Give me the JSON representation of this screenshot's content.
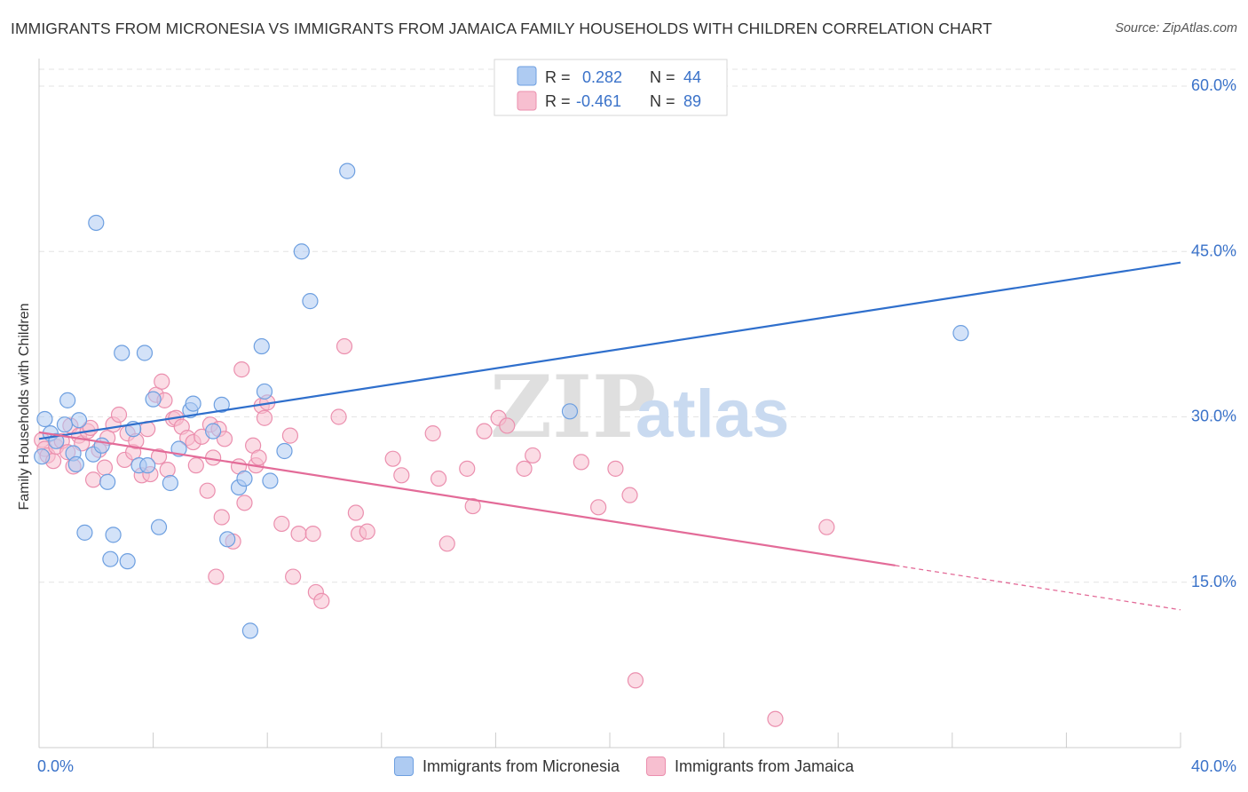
{
  "title": "IMMIGRANTS FROM MICRONESIA VS IMMIGRANTS FROM JAMAICA FAMILY HOUSEHOLDS WITH CHILDREN CORRELATION CHART",
  "source": "Source: ZipAtlas.com",
  "watermark": {
    "zip": "ZIP",
    "atlas": "atlas"
  },
  "colors": {
    "micronesia_fill": "#aecbf2",
    "micronesia_stroke": "#6d9fe0",
    "micronesia_line": "#2f6fcc",
    "jamaica_fill": "#f7bfd0",
    "jamaica_stroke": "#eb8fae",
    "jamaica_line": "#e36b98",
    "axis_value": "#3a72c9",
    "grid": "#e3e3e3"
  },
  "legend_top": [
    {
      "r_label": "R = ",
      "r_value": "0.282",
      "n_label": "N = ",
      "n_value": "44"
    },
    {
      "r_label": "R = ",
      "r_value": "-0.461",
      "n_label": "N = ",
      "n_value": "89"
    }
  ],
  "chart_data": {
    "type": "scatter",
    "xlabel": "",
    "ylabel": "Family Households with Children",
    "xlim": [
      0,
      40
    ],
    "ylim": [
      0,
      60
    ],
    "x_tick_labels": [
      "0.0%",
      "40.0%"
    ],
    "y_ticks": [
      {
        "value": 15,
        "label": "15.0%"
      },
      {
        "value": 30,
        "label": "30.0%"
      },
      {
        "value": 45,
        "label": "45.0%"
      },
      {
        "value": 60,
        "label": "60.0%"
      }
    ],
    "grid": true,
    "legend_position": "top-center and bottom",
    "series": [
      {
        "name": "Immigrants from Micronesia",
        "color": "#6d9fe0",
        "trend": {
          "x0": 0,
          "y0": 28.0,
          "x1": 40,
          "y1": 44.0,
          "solid_until": 40
        },
        "points": [
          [
            0.1,
            26.4
          ],
          [
            0.2,
            29.8
          ],
          [
            0.4,
            28.5
          ],
          [
            0.6,
            27.8
          ],
          [
            0.9,
            29.3
          ],
          [
            1.0,
            31.5
          ],
          [
            1.2,
            26.7
          ],
          [
            1.3,
            25.7
          ],
          [
            1.4,
            29.7
          ],
          [
            1.6,
            19.5
          ],
          [
            1.9,
            26.6
          ],
          [
            2.0,
            47.6
          ],
          [
            2.2,
            27.4
          ],
          [
            2.4,
            24.1
          ],
          [
            2.6,
            19.3
          ],
          [
            2.5,
            17.1
          ],
          [
            2.9,
            35.8
          ],
          [
            3.1,
            16.9
          ],
          [
            3.3,
            28.9
          ],
          [
            3.5,
            25.6
          ],
          [
            3.7,
            35.8
          ],
          [
            3.8,
            25.6
          ],
          [
            4.0,
            31.6
          ],
          [
            4.2,
            20.0
          ],
          [
            4.6,
            24.0
          ],
          [
            4.9,
            27.1
          ],
          [
            5.3,
            30.6
          ],
          [
            5.4,
            31.2
          ],
          [
            6.1,
            28.7
          ],
          [
            6.4,
            31.1
          ],
          [
            6.6,
            18.9
          ],
          [
            7.0,
            23.6
          ],
          [
            7.2,
            24.4
          ],
          [
            7.4,
            10.6
          ],
          [
            7.8,
            36.4
          ],
          [
            7.9,
            32.3
          ],
          [
            8.1,
            24.2
          ],
          [
            8.6,
            26.9
          ],
          [
            9.2,
            45.0
          ],
          [
            9.5,
            40.5
          ],
          [
            10.8,
            52.3
          ],
          [
            18.6,
            30.5
          ],
          [
            32.3,
            37.6
          ]
        ]
      },
      {
        "name": "Immigrants from Jamaica",
        "color": "#eb8fae",
        "trend": {
          "x0": 0,
          "y0": 28.6,
          "x1": 40,
          "y1": 12.5,
          "solid_until": 30.0
        },
        "points": [
          [
            0.1,
            27.9
          ],
          [
            0.2,
            27.1
          ],
          [
            0.3,
            26.5
          ],
          [
            0.5,
            26.0
          ],
          [
            0.6,
            27.3
          ],
          [
            0.8,
            27.8
          ],
          [
            1.0,
            26.8
          ],
          [
            1.1,
            29.2
          ],
          [
            1.2,
            25.5
          ],
          [
            1.4,
            28.3
          ],
          [
            1.5,
            27.6
          ],
          [
            1.7,
            28.7
          ],
          [
            1.8,
            29.0
          ],
          [
            1.9,
            24.3
          ],
          [
            2.1,
            27.0
          ],
          [
            2.3,
            25.4
          ],
          [
            2.4,
            28.1
          ],
          [
            2.6,
            29.3
          ],
          [
            2.8,
            30.2
          ],
          [
            3.0,
            26.1
          ],
          [
            3.1,
            28.5
          ],
          [
            3.3,
            26.8
          ],
          [
            3.4,
            27.8
          ],
          [
            3.6,
            24.7
          ],
          [
            3.8,
            28.9
          ],
          [
            3.9,
            24.8
          ],
          [
            4.1,
            32.0
          ],
          [
            4.2,
            26.4
          ],
          [
            4.3,
            33.2
          ],
          [
            4.4,
            31.5
          ],
          [
            4.5,
            25.2
          ],
          [
            4.7,
            29.8
          ],
          [
            4.8,
            29.9
          ],
          [
            5.0,
            29.1
          ],
          [
            5.2,
            28.1
          ],
          [
            5.4,
            27.7
          ],
          [
            5.5,
            25.6
          ],
          [
            5.7,
            28.2
          ],
          [
            5.9,
            23.3
          ],
          [
            6.0,
            29.3
          ],
          [
            6.1,
            26.3
          ],
          [
            6.2,
            15.5
          ],
          [
            6.3,
            28.9
          ],
          [
            6.4,
            20.9
          ],
          [
            6.5,
            28.0
          ],
          [
            6.8,
            18.7
          ],
          [
            7.0,
            25.5
          ],
          [
            7.1,
            34.3
          ],
          [
            7.2,
            22.2
          ],
          [
            7.5,
            27.4
          ],
          [
            7.6,
            25.6
          ],
          [
            7.7,
            26.3
          ],
          [
            7.8,
            31.0
          ],
          [
            7.9,
            29.9
          ],
          [
            8.0,
            31.3
          ],
          [
            8.5,
            20.3
          ],
          [
            8.8,
            28.3
          ],
          [
            8.9,
            15.5
          ],
          [
            9.1,
            19.4
          ],
          [
            9.6,
            19.4
          ],
          [
            9.7,
            14.1
          ],
          [
            9.9,
            13.3
          ],
          [
            10.5,
            30.0
          ],
          [
            10.7,
            36.4
          ],
          [
            11.1,
            21.3
          ],
          [
            11.2,
            19.4
          ],
          [
            11.5,
            19.6
          ],
          [
            12.4,
            26.2
          ],
          [
            12.7,
            24.7
          ],
          [
            13.8,
            28.5
          ],
          [
            14.0,
            24.4
          ],
          [
            14.3,
            18.5
          ],
          [
            15.0,
            25.3
          ],
          [
            15.2,
            21.9
          ],
          [
            15.6,
            28.7
          ],
          [
            16.1,
            29.9
          ],
          [
            16.4,
            29.2
          ],
          [
            17.0,
            25.3
          ],
          [
            17.3,
            26.5
          ],
          [
            19.0,
            25.9
          ],
          [
            19.6,
            21.8
          ],
          [
            20.2,
            25.3
          ],
          [
            20.7,
            22.9
          ],
          [
            20.9,
            6.1
          ],
          [
            25.8,
            2.6
          ],
          [
            27.6,
            20.0
          ]
        ]
      }
    ]
  }
}
